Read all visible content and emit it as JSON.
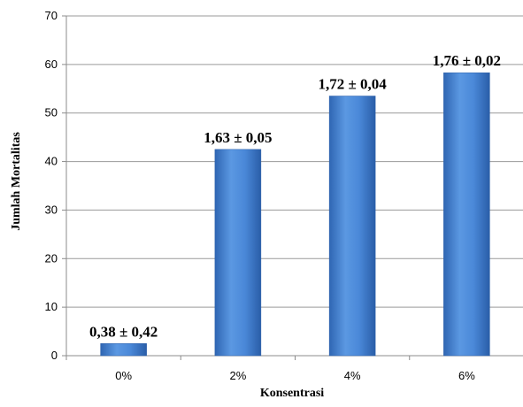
{
  "chart_data": {
    "type": "bar",
    "categories": [
      "0%",
      "2%",
      "4%",
      "6%"
    ],
    "values": [
      2.5,
      42.5,
      53.5,
      58.3
    ],
    "data_labels": [
      "0,38 ± 0,42",
      "1,63 ± 0,05",
      "1,72 ± 0,04",
      "1,76 ± 0,02"
    ],
    "xlabel": "Konsentrasi",
    "ylabel": "Jumlah Mortalitas",
    "ylim": [
      0,
      70
    ],
    "yticks": [
      0,
      10,
      20,
      30,
      40,
      50,
      60,
      70
    ],
    "grid": true,
    "legend": "none",
    "colors": {
      "bar_light": "#6ea6e8",
      "bar_mid": "#3f7fd0",
      "bar_dark": "#2a5ea8",
      "grid": "#9a9a9a",
      "axis": "#8c8c8c"
    }
  }
}
